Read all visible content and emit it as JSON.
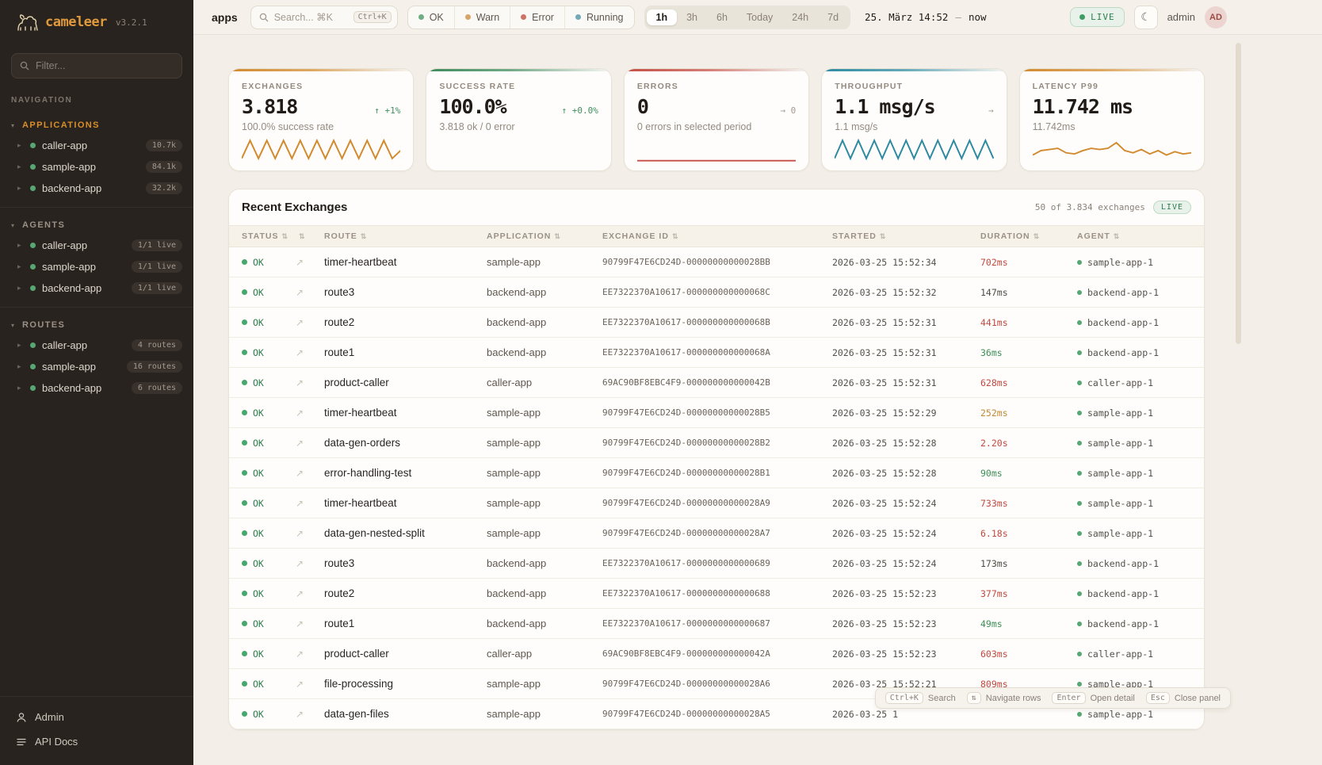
{
  "sidebar": {
    "brand": "cameleer",
    "version": "v3.2.1",
    "filter_placeholder": "Filter...",
    "nav_label": "NAVIGATION",
    "sections": [
      {
        "label": "APPLICATIONS",
        "items": [
          {
            "name": "caller-app",
            "badge": "10.7k"
          },
          {
            "name": "sample-app",
            "badge": "84.1k"
          },
          {
            "name": "backend-app",
            "badge": "32.2k"
          }
        ]
      },
      {
        "label": "AGENTS",
        "items": [
          {
            "name": "caller-app",
            "badge": "1/1 live"
          },
          {
            "name": "sample-app",
            "badge": "1/1 live"
          },
          {
            "name": "backend-app",
            "badge": "1/1 live"
          }
        ]
      },
      {
        "label": "ROUTES",
        "items": [
          {
            "name": "caller-app",
            "badge": "4 routes"
          },
          {
            "name": "sample-app",
            "badge": "16 routes"
          },
          {
            "name": "backend-app",
            "badge": "6 routes"
          }
        ]
      }
    ],
    "footer": [
      {
        "label": "Admin"
      },
      {
        "label": "API Docs"
      }
    ]
  },
  "topbar": {
    "context": "apps",
    "search": {
      "placeholder": "Search... ⌘K",
      "kbd": "Ctrl+K"
    },
    "status_filters": [
      {
        "label": "OK",
        "color": "#6fae85"
      },
      {
        "label": "Warn",
        "color": "#d8a569"
      },
      {
        "label": "Error",
        "color": "#cf7368"
      },
      {
        "label": "Running",
        "color": "#74a9b8"
      }
    ],
    "ranges": [
      "1h",
      "3h",
      "6h",
      "Today",
      "24h",
      "7d"
    ],
    "active_range": "1h",
    "date_from": "25. März 14:52",
    "date_sep": "—",
    "date_to": "now",
    "live_label": "LIVE",
    "user_name": "admin",
    "user_initials": "AD"
  },
  "cards": [
    {
      "title": "EXCHANGES",
      "value": "3.818",
      "delta": "↑ +1%",
      "sub": "100.0% success rate",
      "accent": "#d28a2e",
      "spark": [
        3,
        19,
        3,
        19,
        3,
        19,
        3,
        19,
        3,
        19,
        3,
        19,
        3,
        19,
        3,
        19,
        3,
        19,
        3,
        10
      ]
    },
    {
      "title": "SUCCESS RATE",
      "value": "100.0%",
      "delta": "↑ +0.0%",
      "sub": "3.818 ok / 0 error",
      "accent": "#3e8a5c"
    },
    {
      "title": "ERRORS",
      "value": "0",
      "delta": "→ 0",
      "sub": "0 errors in selected period",
      "accent": "#c44f44",
      "spark": [
        1,
        1
      ]
    },
    {
      "title": "THROUGHPUT",
      "value": "1.1 msg/s",
      "delta": "→",
      "sub": "1.1 msg/s",
      "accent": "#2e8aa0",
      "spark": [
        3,
        19,
        3,
        19,
        3,
        19,
        3,
        19,
        3,
        19,
        3,
        19,
        3,
        19,
        3,
        19,
        3,
        19,
        3,
        19,
        3
      ]
    },
    {
      "title": "LATENCY P99",
      "value": "11.742 ms",
      "delta": "",
      "sub": "11.742ms",
      "accent": "#d28a2e",
      "spark": [
        6,
        10,
        11,
        12,
        8,
        7,
        10,
        12,
        11,
        12,
        17,
        10,
        8,
        11,
        7,
        10,
        6,
        9,
        7,
        8
      ]
    }
  ],
  "table": {
    "title": "Recent Exchanges",
    "summary": "50 of 3.834 exchanges",
    "live_badge": "LIVE",
    "columns": [
      "STATUS",
      "",
      "ROUTE",
      "APPLICATION",
      "EXCHANGE ID",
      "STARTED",
      "DURATION",
      "AGENT"
    ],
    "rows": [
      {
        "status": "OK",
        "route": "timer-heartbeat",
        "application": "sample-app",
        "exchange_id": "90799F47E6CD24D-00000000000028BB",
        "started": "2026-03-25 15:52:34",
        "duration": "702ms",
        "duration_color": "red",
        "agent": "sample-app-1"
      },
      {
        "status": "OK",
        "route": "route3",
        "application": "backend-app",
        "exchange_id": "EE7322370A10617-000000000000068C",
        "started": "2026-03-25 15:52:32",
        "duration": "147ms",
        "duration_color": "neutral",
        "agent": "backend-app-1"
      },
      {
        "status": "OK",
        "route": "route2",
        "application": "backend-app",
        "exchange_id": "EE7322370A10617-000000000000068B",
        "started": "2026-03-25 15:52:31",
        "duration": "441ms",
        "duration_color": "red",
        "agent": "backend-app-1"
      },
      {
        "status": "OK",
        "route": "route1",
        "application": "backend-app",
        "exchange_id": "EE7322370A10617-000000000000068A",
        "started": "2026-03-25 15:52:31",
        "duration": "36ms",
        "duration_color": "green",
        "agent": "backend-app-1"
      },
      {
        "status": "OK",
        "route": "product-caller",
        "application": "caller-app",
        "exchange_id": "69AC90BF8EBC4F9-000000000000042B",
        "started": "2026-03-25 15:52:31",
        "duration": "628ms",
        "duration_color": "red",
        "agent": "caller-app-1"
      },
      {
        "status": "OK",
        "route": "timer-heartbeat",
        "application": "sample-app",
        "exchange_id": "90799F47E6CD24D-00000000000028B5",
        "started": "2026-03-25 15:52:29",
        "duration": "252ms",
        "duration_color": "amber",
        "agent": "sample-app-1"
      },
      {
        "status": "OK",
        "route": "data-gen-orders",
        "application": "sample-app",
        "exchange_id": "90799F47E6CD24D-00000000000028B2",
        "started": "2026-03-25 15:52:28",
        "duration": "2.20s",
        "duration_color": "red",
        "agent": "sample-app-1"
      },
      {
        "status": "OK",
        "route": "error-handling-test",
        "application": "sample-app",
        "exchange_id": "90799F47E6CD24D-00000000000028B1",
        "started": "2026-03-25 15:52:28",
        "duration": "90ms",
        "duration_color": "green",
        "agent": "sample-app-1"
      },
      {
        "status": "OK",
        "route": "timer-heartbeat",
        "application": "sample-app",
        "exchange_id": "90799F47E6CD24D-00000000000028A9",
        "started": "2026-03-25 15:52:24",
        "duration": "733ms",
        "duration_color": "red",
        "agent": "sample-app-1"
      },
      {
        "status": "OK",
        "route": "data-gen-nested-split",
        "application": "sample-app",
        "exchange_id": "90799F47E6CD24D-00000000000028A7",
        "started": "2026-03-25 15:52:24",
        "duration": "6.18s",
        "duration_color": "red",
        "agent": "sample-app-1"
      },
      {
        "status": "OK",
        "route": "route3",
        "application": "backend-app",
        "exchange_id": "EE7322370A10617-0000000000000689",
        "started": "2026-03-25 15:52:24",
        "duration": "173ms",
        "duration_color": "neutral",
        "agent": "backend-app-1"
      },
      {
        "status": "OK",
        "route": "route2",
        "application": "backend-app",
        "exchange_id": "EE7322370A10617-0000000000000688",
        "started": "2026-03-25 15:52:23",
        "duration": "377ms",
        "duration_color": "red",
        "agent": "backend-app-1"
      },
      {
        "status": "OK",
        "route": "route1",
        "application": "backend-app",
        "exchange_id": "EE7322370A10617-0000000000000687",
        "started": "2026-03-25 15:52:23",
        "duration": "49ms",
        "duration_color": "green",
        "agent": "backend-app-1"
      },
      {
        "status": "OK",
        "route": "product-caller",
        "application": "caller-app",
        "exchange_id": "69AC90BF8EBC4F9-000000000000042A",
        "started": "2026-03-25 15:52:23",
        "duration": "603ms",
        "duration_color": "red",
        "agent": "caller-app-1"
      },
      {
        "status": "OK",
        "route": "file-processing",
        "application": "sample-app",
        "exchange_id": "90799F47E6CD24D-00000000000028A6",
        "started": "2026-03-25 15:52:21",
        "duration": "809ms",
        "duration_color": "red",
        "agent": "sample-app-1"
      },
      {
        "status": "OK",
        "route": "data-gen-files",
        "application": "sample-app",
        "exchange_id": "90799F47E6CD24D-00000000000028A5",
        "started": "2026-03-25 1",
        "duration": "",
        "duration_color": "neutral",
        "agent": "sample-app-1"
      }
    ]
  },
  "hints": [
    {
      "key": "Ctrl+K",
      "label": "Search"
    },
    {
      "key": "⇅",
      "label": "Navigate rows"
    },
    {
      "key": "Enter",
      "label": "Open detail"
    },
    {
      "key": "Esc",
      "label": "Close panel"
    }
  ]
}
